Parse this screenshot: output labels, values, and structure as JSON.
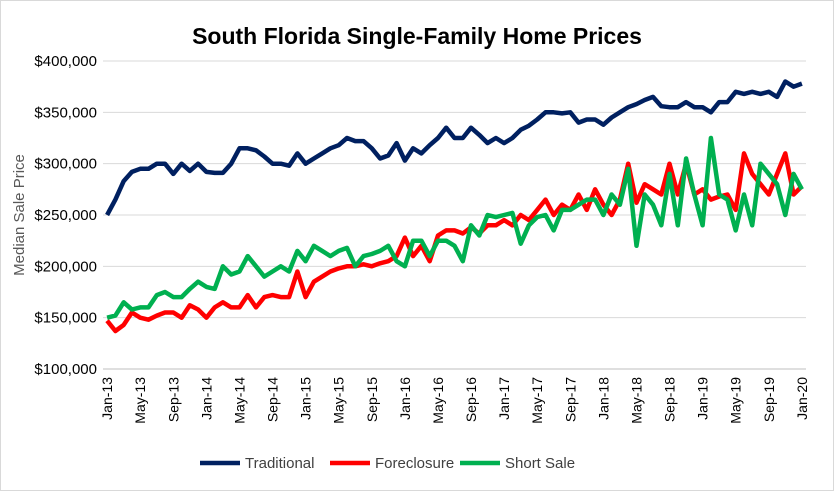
{
  "chart_data": {
    "type": "line",
    "title": "South Florida Single-Family Home Prices",
    "y_label": "Median Sale Price",
    "categories": [
      "Jan-13",
      null,
      null,
      null,
      "May-13",
      null,
      null,
      null,
      "Sep-13",
      null,
      null,
      null,
      "Jan-14",
      null,
      null,
      null,
      "May-14",
      null,
      null,
      null,
      "Sep-14",
      null,
      null,
      null,
      "Jan-15",
      null,
      null,
      null,
      "May-15",
      null,
      null,
      null,
      "Sep-15",
      null,
      null,
      null,
      "Jan-16",
      null,
      null,
      null,
      "May-16",
      null,
      null,
      null,
      "Sep-16",
      null,
      null,
      null,
      "Jan-17",
      null,
      null,
      null,
      "May-17",
      null,
      null,
      null,
      "Sep-17",
      null,
      null,
      null,
      "Jan-18",
      null,
      null,
      null,
      "May-18",
      null,
      null,
      null,
      "Sep-18",
      null,
      null,
      null,
      "Jan-19",
      null,
      null,
      null,
      "May-19",
      null,
      null,
      null,
      "Sep-19",
      null,
      null,
      null,
      "Jan-20"
    ],
    "series": [
      {
        "name": "Traditional",
        "color": "#002060",
        "values": [
          250000,
          265000,
          283000,
          292000,
          295000,
          295000,
          300000,
          300000,
          290000,
          300000,
          293000,
          300000,
          292000,
          291000,
          291000,
          300000,
          315000,
          315000,
          313000,
          307000,
          300000,
          300000,
          298000,
          310000,
          300000,
          305000,
          310000,
          315000,
          318000,
          325000,
          322000,
          322000,
          315000,
          305000,
          308000,
          320000,
          303000,
          315000,
          310000,
          318000,
          325000,
          335000,
          325000,
          325000,
          335000,
          328000,
          320000,
          325000,
          320000,
          325000,
          333000,
          337000,
          343000,
          350000,
          350000,
          349000,
          350000,
          340000,
          343000,
          343000,
          338000,
          345000,
          350000,
          355000,
          358000,
          362000,
          365000,
          356000,
          355000,
          355000,
          360000,
          355000,
          355000,
          350000,
          360000,
          360000,
          370000,
          368000,
          370000,
          368000,
          370000,
          365000,
          380000,
          375000,
          378000
        ]
      },
      {
        "name": "Foreclosure",
        "color": "#ff0000",
        "values": [
          147000,
          137000,
          143000,
          155000,
          150000,
          148000,
          152000,
          155000,
          155000,
          150000,
          162000,
          158000,
          150000,
          160000,
          165000,
          160000,
          160000,
          172000,
          160000,
          170000,
          172000,
          170000,
          170000,
          195000,
          170000,
          185000,
          190000,
          195000,
          198000,
          200000,
          200000,
          202000,
          200000,
          203000,
          205000,
          210000,
          228000,
          210000,
          220000,
          205000,
          230000,
          235000,
          235000,
          232000,
          238000,
          232000,
          240000,
          240000,
          245000,
          240000,
          250000,
          245000,
          255000,
          265000,
          250000,
          260000,
          255000,
          270000,
          255000,
          275000,
          260000,
          250000,
          265000,
          300000,
          262000,
          280000,
          275000,
          270000,
          300000,
          270000,
          300000,
          270000,
          275000,
          265000,
          268000,
          270000,
          255000,
          310000,
          290000,
          280000,
          270000,
          290000,
          310000,
          270000,
          278000
        ]
      },
      {
        "name": "Short Sale",
        "color": "#00b050",
        "values": [
          150000,
          152000,
          165000,
          158000,
          160000,
          160000,
          172000,
          175000,
          170000,
          170000,
          178000,
          185000,
          180000,
          178000,
          200000,
          192000,
          195000,
          210000,
          200000,
          190000,
          195000,
          200000,
          195000,
          215000,
          205000,
          220000,
          215000,
          210000,
          215000,
          218000,
          200000,
          210000,
          212000,
          215000,
          220000,
          205000,
          200000,
          225000,
          225000,
          210000,
          225000,
          225000,
          220000,
          205000,
          240000,
          230000,
          250000,
          248000,
          250000,
          252000,
          222000,
          240000,
          248000,
          250000,
          235000,
          255000,
          255000,
          260000,
          265000,
          265000,
          250000,
          270000,
          260000,
          295000,
          220000,
          270000,
          260000,
          240000,
          290000,
          240000,
          305000,
          270000,
          240000,
          325000,
          270000,
          265000,
          235000,
          270000,
          240000,
          300000,
          290000,
          280000,
          250000,
          290000,
          275000
        ]
      }
    ],
    "ylim": [
      100000,
      400000
    ],
    "yticks": [
      {
        "value": 100000,
        "label": "$100,000"
      },
      {
        "value": 150000,
        "label": "$150,000"
      },
      {
        "value": 200000,
        "label": "$200,000"
      },
      {
        "value": 250000,
        "label": "$250,000"
      },
      {
        "value": 300000,
        "label": "$300,000"
      },
      {
        "value": 350000,
        "label": "$350,000"
      },
      {
        "value": 400000,
        "label": "$400,000"
      }
    ],
    "grid": true,
    "legend": "bottom"
  }
}
